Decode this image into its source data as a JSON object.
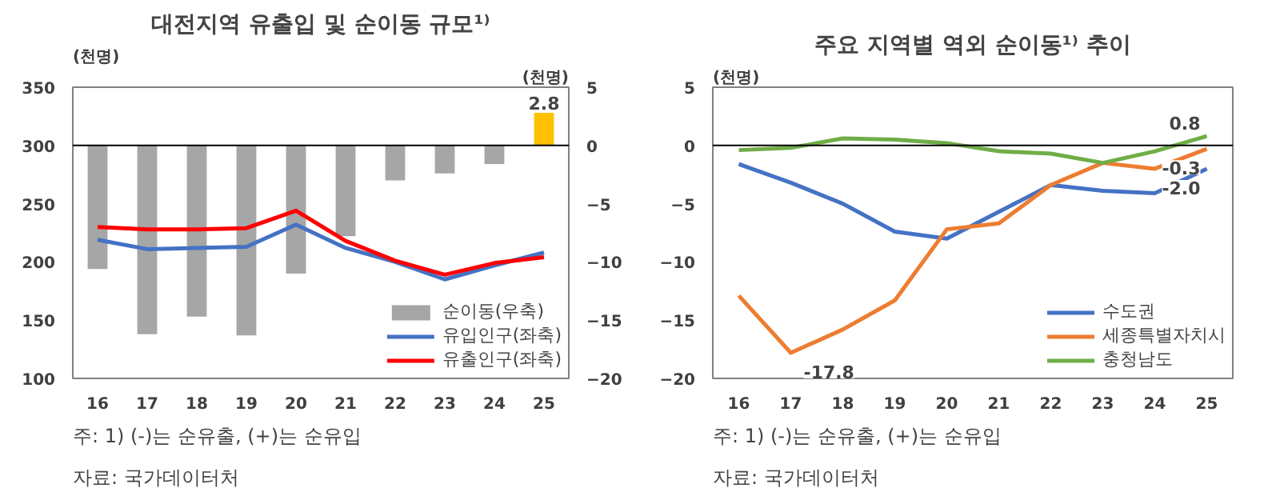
{
  "chart_data": [
    {
      "type": "bar",
      "title": "대전지역 유출입 및 순이동 규모¹⁾",
      "ylabel": "(천명)",
      "y2label": "(천명)",
      "categories": [
        "16",
        "17",
        "18",
        "19",
        "20",
        "21",
        "22",
        "23",
        "24",
        "25"
      ],
      "ylim": [
        100,
        350
      ],
      "yticks": [
        100,
        150,
        200,
        250,
        300,
        350
      ],
      "y2lim": [
        -20,
        5
      ],
      "y2ticks": [
        -20,
        -15,
        -10,
        -5,
        0,
        5
      ],
      "grid": false,
      "legend": "bottom right",
      "ref_lines": [
        {
          "axis": "y2",
          "value": 0,
          "color": "#000000"
        }
      ],
      "series": [
        {
          "name": "순이동(우축)",
          "type": "bar",
          "axis": "y2",
          "color": "#a6a6a6",
          "colors": [
            "#a6a6a6",
            "#a6a6a6",
            "#a6a6a6",
            "#a6a6a6",
            "#a6a6a6",
            "#a6a6a6",
            "#a6a6a6",
            "#a6a6a6",
            "#a6a6a6",
            "#ffc000"
          ],
          "values": [
            -10.6,
            -16.2,
            -14.7,
            -16.3,
            -11.0,
            -7.8,
            -3.0,
            -2.4,
            -1.6,
            2.8
          ],
          "value_labels": [
            null,
            null,
            null,
            null,
            null,
            null,
            null,
            null,
            null,
            "2.8"
          ]
        },
        {
          "name": "유입인구(좌축)",
          "type": "line",
          "color": "#4472c4",
          "values": [
            219,
            211,
            212,
            213,
            232,
            212,
            200,
            185,
            197,
            208
          ]
        },
        {
          "name": "유출인구(좌축)",
          "type": "line",
          "color": "#ff0000",
          "values": [
            230,
            228,
            228,
            229,
            244,
            218,
            201,
            189,
            199,
            204
          ]
        }
      ],
      "annotations": [
        "주: 1) (-)는 순유출, (+)는 순유입",
        "자료: 국가데이터처"
      ]
    },
    {
      "type": "line",
      "title": "주요 지역별 역외 순이동¹⁾ 추이",
      "ylabel": "(천명)",
      "categories": [
        "16",
        "17",
        "18",
        "19",
        "20",
        "21",
        "22",
        "23",
        "24",
        "25"
      ],
      "ylim": [
        -20,
        5
      ],
      "yticks": [
        -20,
        -15,
        -10,
        -5,
        0,
        5
      ],
      "grid": false,
      "legend": "bottom right",
      "ref_lines": [
        {
          "axis": "y",
          "value": 0,
          "color": "#000000"
        }
      ],
      "series": [
        {
          "name": "수도권",
          "color": "#4472c4",
          "values": [
            -1.6,
            -3.2,
            -5.0,
            -7.4,
            -8.0,
            -5.7,
            -3.4,
            -3.9,
            -4.1,
            -2.0
          ],
          "value_labels": [
            null,
            null,
            null,
            null,
            null,
            null,
            null,
            null,
            null,
            "-2.0"
          ]
        },
        {
          "name": "세종특별자치시",
          "color": "#ed7d31",
          "values": [
            -12.9,
            -17.8,
            -15.8,
            -13.3,
            -7.2,
            -6.7,
            -3.4,
            -1.5,
            -2.0,
            -0.3
          ],
          "value_labels": [
            null,
            "-17.8",
            null,
            null,
            null,
            null,
            null,
            null,
            null,
            "-0.3"
          ]
        },
        {
          "name": "충청남도",
          "color": "#70ad47",
          "values": [
            -0.4,
            -0.2,
            0.6,
            0.5,
            0.2,
            -0.5,
            -0.7,
            -1.5,
            -0.5,
            0.8
          ],
          "value_labels": [
            null,
            null,
            null,
            null,
            null,
            null,
            null,
            null,
            null,
            "0.8"
          ]
        }
      ],
      "annotations": [
        "주: 1) (-)는 순유출, (+)는 순유입",
        "자료: 국가데이터처"
      ]
    }
  ]
}
